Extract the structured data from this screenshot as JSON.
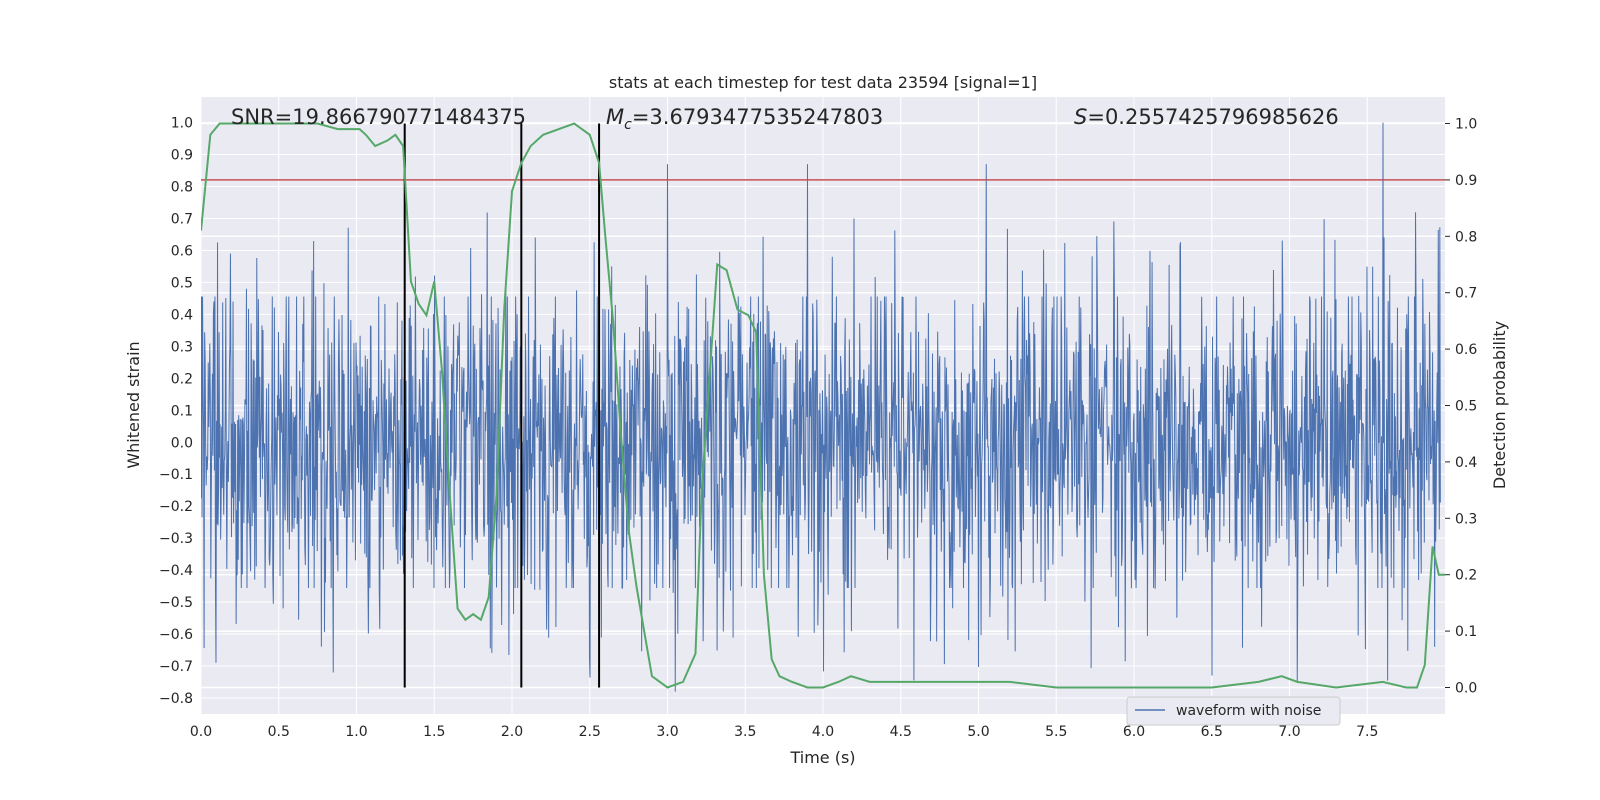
{
  "chart_data": {
    "type": "line",
    "title": "stats at each timestep for test data 23594 [signal=1]",
    "xlabel": "Time (s)",
    "ylabel": "Whitened strain",
    "y2label": "Detection probability",
    "xlim": [
      0.0,
      8.0
    ],
    "ylim": [
      -0.85,
      1.08
    ],
    "y2lim": [
      -0.047,
      1.047
    ],
    "x_ticks": [
      "0.0",
      "0.5",
      "1.0",
      "1.5",
      "2.0",
      "2.5",
      "3.0",
      "3.5",
      "4.0",
      "4.5",
      "5.0",
      "5.5",
      "6.0",
      "6.5",
      "7.0",
      "7.5"
    ],
    "y_ticks": [
      "1.0",
      "0.9",
      "0.8",
      "0.7",
      "0.6",
      "0.5",
      "0.4",
      "0.3",
      "0.2",
      "0.1",
      "0.0",
      "−0.1",
      "−0.2",
      "−0.3",
      "−0.4",
      "−0.5",
      "−0.6",
      "−0.7",
      "−0.8"
    ],
    "y2_ticks": [
      "1.0",
      "0.9",
      "0.8",
      "0.7",
      "0.6",
      "0.5",
      "0.4",
      "0.3",
      "0.2",
      "0.1",
      "0.0"
    ],
    "grid": true,
    "legend_placement": "lower-center-right",
    "colors": {
      "background": "#eaeaf2",
      "grid": "#ffffff",
      "waveform": "#4c72b0",
      "probability": "#55a868",
      "threshold": "#c44e52",
      "markers": "#000000"
    },
    "annotations": {
      "snr": "SNR=19.866790771484375",
      "mc_label": "M",
      "mc_sub": "c",
      "mc_value": "=3.6793477535247803",
      "s_label": "S",
      "s_value": "=0.2557425796985626"
    },
    "threshold_y2": 0.9,
    "vertical_markers_x": [
      1.31,
      2.06,
      2.56
    ],
    "series": [
      {
        "name": "waveform with noise",
        "role": "waveform",
        "axis": "left",
        "seed": 23594,
        "band_abs": 0.24,
        "peak_max": 1.0,
        "peak_min": -0.78,
        "notable_peaks": [
          [
            0.19,
            0.59
          ],
          [
            0.85,
            -0.72
          ],
          [
            3.0,
            0.87
          ],
          [
            3.05,
            -0.78
          ],
          [
            3.9,
            0.87
          ],
          [
            4.2,
            0.7
          ],
          [
            5.05,
            0.87
          ],
          [
            6.5,
            -0.73
          ],
          [
            7.05,
            -0.75
          ],
          [
            7.6,
            1.0
          ]
        ]
      },
      {
        "name": "",
        "role": "probability",
        "axis": "right",
        "x": [
          0.0,
          0.06,
          0.12,
          0.3,
          0.5,
          0.75,
          0.88,
          0.95,
          1.02,
          1.06,
          1.12,
          1.2,
          1.25,
          1.3,
          1.35,
          1.4,
          1.45,
          1.5,
          1.55,
          1.6,
          1.65,
          1.7,
          1.75,
          1.8,
          1.85,
          1.9,
          1.95,
          2.0,
          2.06,
          2.12,
          2.2,
          2.3,
          2.4,
          2.5,
          2.56,
          2.6,
          2.65,
          2.7,
          2.75,
          2.8,
          2.85,
          2.9,
          3.0,
          3.1,
          3.18,
          3.22,
          3.27,
          3.32,
          3.38,
          3.45,
          3.52,
          3.57,
          3.62,
          3.67,
          3.72,
          3.8,
          3.9,
          4.0,
          4.1,
          4.18,
          4.3,
          4.45,
          4.6,
          5.0,
          5.2,
          5.5,
          6.0,
          6.5,
          6.8,
          6.95,
          7.05,
          7.3,
          7.6,
          7.75,
          7.82,
          7.87,
          7.92,
          7.96,
          8.0
        ],
        "y": [
          0.81,
          0.98,
          1.0,
          1.0,
          1.0,
          1.0,
          0.99,
          0.99,
          0.99,
          0.98,
          0.96,
          0.97,
          0.98,
          0.96,
          0.72,
          0.68,
          0.66,
          0.72,
          0.56,
          0.34,
          0.14,
          0.12,
          0.13,
          0.12,
          0.16,
          0.34,
          0.67,
          0.88,
          0.93,
          0.96,
          0.98,
          0.99,
          1.0,
          0.98,
          0.93,
          0.8,
          0.65,
          0.45,
          0.28,
          0.18,
          0.1,
          0.02,
          0.0,
          0.01,
          0.06,
          0.35,
          0.55,
          0.75,
          0.74,
          0.67,
          0.66,
          0.63,
          0.2,
          0.05,
          0.02,
          0.01,
          0.0,
          0.0,
          0.01,
          0.02,
          0.01,
          0.01,
          0.01,
          0.01,
          0.01,
          0.0,
          0.0,
          0.0,
          0.01,
          0.02,
          0.01,
          0.0,
          0.01,
          0.0,
          0.0,
          0.04,
          0.25,
          0.2,
          0.2
        ]
      }
    ]
  }
}
